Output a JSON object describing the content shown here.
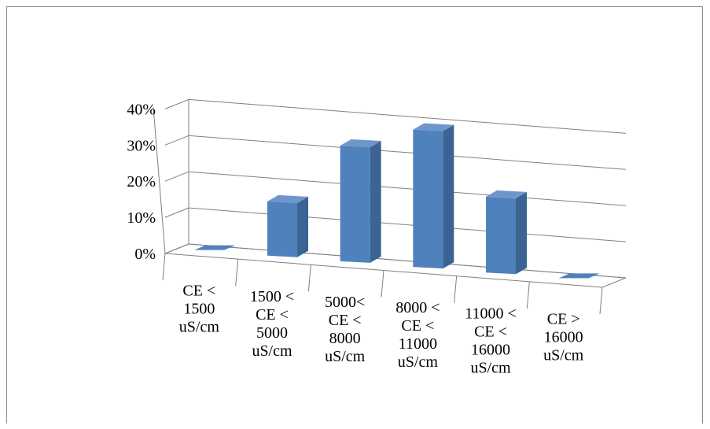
{
  "chart_data": {
    "type": "bar",
    "style": "3d-column",
    "categories": [
      "CE < 1500 uS/cm",
      "1500 < CE < 5000 uS/cm",
      "5000< CE < 8000 uS/cm",
      "8000 < CE < 11000 uS/cm",
      "11000 < CE < 16000 uS/cm",
      "CE > 16000 uS/cm"
    ],
    "category_lines": [
      [
        "CE <",
        "1500",
        "uS/cm"
      ],
      [
        "1500 <",
        "CE <",
        "5000",
        "uS/cm"
      ],
      [
        "5000<",
        "CE <",
        "8000",
        "uS/cm"
      ],
      [
        "8000 <",
        "CE <",
        "11000",
        "uS/cm"
      ],
      [
        "11000 <",
        "CE <",
        "16000",
        "uS/cm"
      ],
      [
        "CE >",
        "16000",
        "uS/cm"
      ]
    ],
    "values": [
      0,
      15,
      32,
      38,
      21,
      0
    ],
    "yticks": [
      "0%",
      "10%",
      "20%",
      "30%",
      "40%"
    ],
    "ylim": [
      0,
      40
    ],
    "unit": "%",
    "grid": true,
    "legend": "none",
    "title": "",
    "xlabel": "",
    "ylabel": "",
    "colors": {
      "front": "#4f81bd",
      "side": "#3b6494",
      "top": "#6f96cb",
      "grid": "#808080"
    }
  }
}
